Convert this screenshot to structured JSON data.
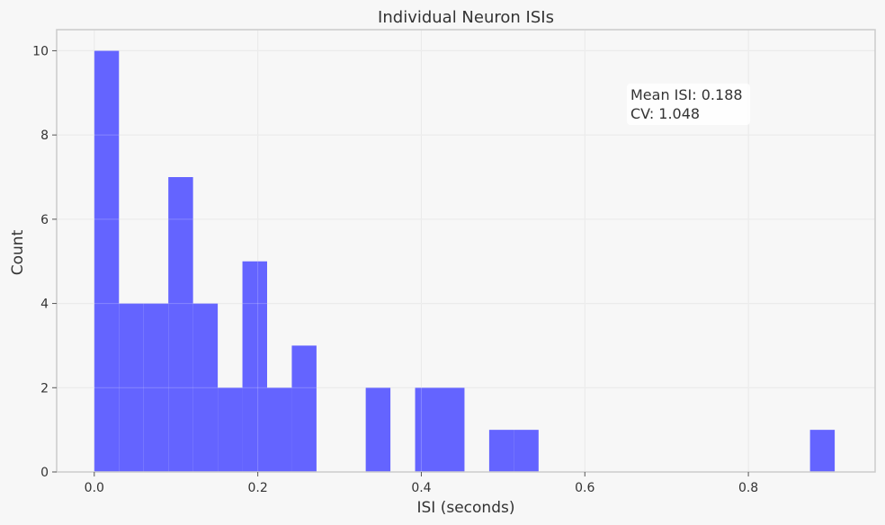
{
  "chart_data": {
    "type": "bar",
    "title": "Individual Neuron ISIs",
    "xlabel": "ISI (seconds)",
    "ylabel": "Count",
    "xlim": [
      -0.046,
      0.955
    ],
    "ylim": [
      0,
      10.5
    ],
    "bin_width": 0.0302,
    "bins": [
      {
        "x_start": 0.0,
        "count": 10
      },
      {
        "x_start": 0.0302,
        "count": 4
      },
      {
        "x_start": 0.0604,
        "count": 4
      },
      {
        "x_start": 0.0906,
        "count": 7
      },
      {
        "x_start": 0.1208,
        "count": 4
      },
      {
        "x_start": 0.151,
        "count": 2
      },
      {
        "x_start": 0.1812,
        "count": 5
      },
      {
        "x_start": 0.2114,
        "count": 2
      },
      {
        "x_start": 0.2416,
        "count": 3
      },
      {
        "x_start": 0.332,
        "count": 2
      },
      {
        "x_start": 0.3924,
        "count": 2
      },
      {
        "x_start": 0.4226,
        "count": 2
      },
      {
        "x_start": 0.483,
        "count": 1
      },
      {
        "x_start": 0.5132,
        "count": 1
      },
      {
        "x_start": 0.8754,
        "count": 1
      }
    ],
    "x_ticks": [
      0.0,
      0.2,
      0.4,
      0.6,
      0.8
    ],
    "x_tick_labels": [
      "0.0",
      "0.2",
      "0.4",
      "0.6",
      "0.8"
    ],
    "y_ticks": [
      0,
      2,
      4,
      6,
      8,
      10
    ],
    "y_tick_labels": [
      "0",
      "2",
      "4",
      "6",
      "8",
      "10"
    ],
    "grid": true,
    "bar_color": "#6464ff",
    "background_color": "#f7f7f7",
    "annotation": {
      "line1": "Mean ISI: 0.188",
      "line2": "CV: 1.048",
      "placement": "top-right"
    }
  }
}
